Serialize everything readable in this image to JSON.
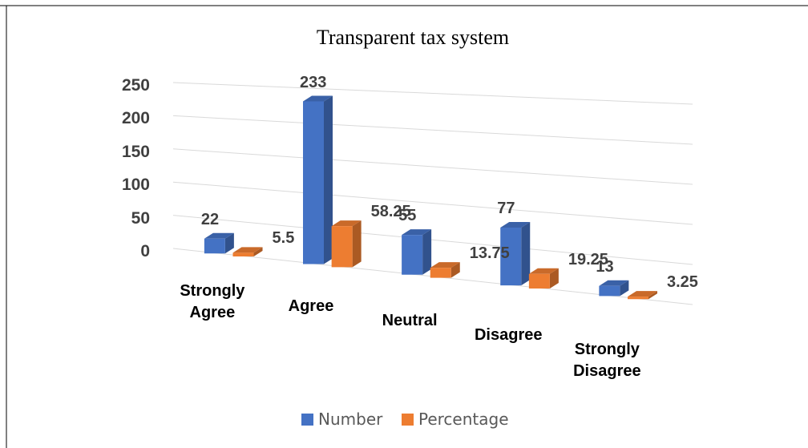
{
  "chart_data": {
    "type": "bar3d",
    "title": "Transparent tax system",
    "categories": [
      "Strongly Agree",
      "Agree",
      "Neutral",
      "Disagree",
      "Strongly Disagree"
    ],
    "series": [
      {
        "name": "Number",
        "color": "#4472c4",
        "values": [
          22,
          233,
          55,
          77,
          13
        ]
      },
      {
        "name": "Percentage",
        "color": "#ed7d31",
        "values": [
          5.5,
          58.25,
          13.75,
          19.25,
          3.25
        ]
      }
    ],
    "ylim": [
      0,
      250
    ],
    "yticks": [
      0,
      50,
      100,
      150,
      200,
      250
    ],
    "grid": true,
    "legend": "bottom"
  }
}
